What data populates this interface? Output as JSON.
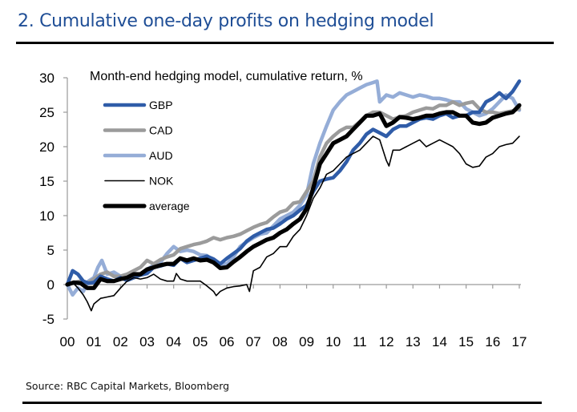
{
  "header": {
    "title": "2. Cumulative one-day profits on hedging model"
  },
  "footer": {
    "source": "Source: RBC Capital Markets, Bloomberg"
  },
  "chart_data": {
    "type": "line",
    "title": "2. Cumulative one-day profits on hedging model",
    "subtitle": "Month-end hedging model, cumulative return, %",
    "xlabel": "",
    "ylabel": "",
    "xlim": [
      2000,
      2017
    ],
    "ylim": [
      -5,
      30
    ],
    "x_ticks": [
      2000,
      2001,
      2002,
      2003,
      2004,
      2005,
      2006,
      2007,
      2008,
      2009,
      2010,
      2011,
      2012,
      2013,
      2014,
      2015,
      2016,
      2017
    ],
    "x_tick_labels": [
      "00",
      "01",
      "02",
      "03",
      "04",
      "05",
      "06",
      "07",
      "08",
      "09",
      "10",
      "11",
      "12",
      "13",
      "14",
      "15",
      "16",
      "17"
    ],
    "y_ticks": [
      -5,
      0,
      5,
      10,
      15,
      20,
      25,
      30
    ],
    "y_tick_labels": [
      "-5",
      "0",
      "5",
      "10",
      "15",
      "20",
      "25",
      "30"
    ],
    "grid": false,
    "legend_position": "top-left",
    "series": [
      {
        "name": "GBP",
        "color": "#2f5ca8",
        "style": "thick",
        "x": [
          2000,
          2000.2,
          2000.4,
          2000.6,
          2000.8,
          2001,
          2001.25,
          2001.5,
          2001.75,
          2002,
          2002.25,
          2002.5,
          2002.75,
          2003,
          2003.25,
          2003.5,
          2003.75,
          2004,
          2004.25,
          2004.5,
          2004.75,
          2005,
          2005.25,
          2005.5,
          2005.75,
          2006,
          2006.25,
          2006.5,
          2006.75,
          2007,
          2007.25,
          2007.5,
          2007.75,
          2008,
          2008.25,
          2008.5,
          2008.75,
          2009,
          2009.25,
          2009.5,
          2009.75,
          2010,
          2010.25,
          2010.5,
          2010.75,
          2011,
          2011.25,
          2011.5,
          2011.75,
          2012,
          2012.25,
          2012.5,
          2012.75,
          2013,
          2013.25,
          2013.5,
          2013.75,
          2014,
          2014.25,
          2014.5,
          2014.75,
          2015,
          2015.25,
          2015.5,
          2015.75,
          2016,
          2016.25,
          2016.5,
          2016.75,
          2017
        ],
        "values": [
          0,
          2,
          1.5,
          0.5,
          0.2,
          0.3,
          1.2,
          0.8,
          0.5,
          1,
          0.6,
          1,
          1.4,
          1.6,
          2.5,
          2.7,
          3,
          2.8,
          3.8,
          3.2,
          3.5,
          3.8,
          4.1,
          3.7,
          3,
          3.8,
          4.5,
          5.2,
          6.3,
          7,
          7.5,
          8,
          8.2,
          8.8,
          9.5,
          10,
          10.8,
          11.5,
          13.5,
          15,
          15.3,
          15.5,
          16.5,
          17.8,
          19.5,
          20.5,
          21.8,
          22.5,
          22,
          21.5,
          22.5,
          23,
          23,
          23.5,
          24,
          24.2,
          24,
          24.5,
          24.8,
          24.2,
          24.5,
          24.5,
          25,
          25,
          26.5,
          27,
          27.8,
          27,
          28,
          29.5
        ]
      },
      {
        "name": "CAD",
        "color": "#9b9b9b",
        "style": "thick",
        "x": [
          2000,
          2000.25,
          2000.5,
          2000.75,
          2001,
          2001.25,
          2001.5,
          2001.75,
          2002,
          2002.25,
          2002.5,
          2002.75,
          2003,
          2003.25,
          2003.5,
          2003.75,
          2004,
          2004.25,
          2004.5,
          2004.75,
          2005,
          2005.25,
          2005.5,
          2005.75,
          2006,
          2006.25,
          2006.5,
          2006.75,
          2007,
          2007.25,
          2007.5,
          2007.75,
          2008,
          2008.25,
          2008.5,
          2008.75,
          2009,
          2009.25,
          2009.5,
          2009.75,
          2010,
          2010.25,
          2010.5,
          2010.75,
          2011,
          2011.25,
          2011.5,
          2011.75,
          2012,
          2012.25,
          2012.5,
          2012.75,
          2013,
          2013.25,
          2013.5,
          2013.75,
          2014,
          2014.25,
          2014.5,
          2014.75,
          2015,
          2015.25,
          2015.5,
          2015.75,
          2016,
          2016.25,
          2016.5,
          2016.75,
          2017
        ],
        "values": [
          0,
          0.3,
          0.5,
          0.2,
          0.8,
          1.5,
          1.8,
          1.2,
          1.2,
          1.5,
          2,
          2.5,
          3.5,
          3,
          3.6,
          4,
          4.3,
          5.2,
          5.5,
          5.8,
          6,
          6.3,
          6.8,
          6.5,
          6.8,
          7,
          7.3,
          7.8,
          8.3,
          8.7,
          9,
          9.8,
          10.5,
          10.8,
          11.8,
          12,
          13.5,
          15,
          18.5,
          20.5,
          21.5,
          22.3,
          22.8,
          22.8,
          23.6,
          24.5,
          25,
          25,
          24.5,
          24,
          24.3,
          24.5,
          25,
          25.3,
          25.6,
          25.5,
          26,
          26,
          26.5,
          26,
          26.3,
          26.5,
          25.5,
          25,
          25,
          24.8,
          25,
          25.2,
          25.5
        ]
      },
      {
        "name": "AUD",
        "color": "#95add7",
        "style": "thick",
        "x": [
          2000,
          2000.2,
          2000.4,
          2000.6,
          2000.8,
          2001,
          2001.15,
          2001.3,
          2001.5,
          2001.75,
          2002,
          2002.25,
          2002.5,
          2002.75,
          2003,
          2003.25,
          2003.5,
          2003.75,
          2004,
          2004.25,
          2004.5,
          2004.75,
          2005,
          2005.25,
          2005.5,
          2005.75,
          2006,
          2006.25,
          2006.5,
          2006.75,
          2007,
          2007.25,
          2007.5,
          2007.75,
          2008,
          2008.25,
          2008.5,
          2008.75,
          2009,
          2009.25,
          2009.5,
          2009.75,
          2010,
          2010.25,
          2010.5,
          2010.75,
          2011,
          2011.25,
          2011.5,
          2011.65,
          2011.75,
          2012,
          2012.25,
          2012.5,
          2012.75,
          2013,
          2013.25,
          2013.5,
          2013.75,
          2014,
          2014.25,
          2014.5,
          2014.75,
          2015,
          2015.25,
          2015.5,
          2015.75,
          2016,
          2016.25,
          2016.5,
          2016.75,
          2017
        ],
        "values": [
          0,
          -1.5,
          -0.5,
          -1,
          0.5,
          1,
          2.5,
          3.5,
          1.5,
          1.8,
          1.2,
          1.5,
          1.6,
          1.5,
          2.2,
          2.8,
          3.2,
          4.5,
          5.5,
          4.8,
          5,
          4.8,
          4.3,
          4.2,
          3.5,
          3,
          3,
          4,
          5.5,
          6.2,
          6.8,
          7.3,
          7.5,
          8.5,
          9.5,
          10,
          10.5,
          11.5,
          13,
          17.5,
          20.5,
          23,
          25.3,
          26.5,
          27.5,
          28,
          28.5,
          29,
          29.3,
          29.5,
          26.5,
          27.5,
          27.2,
          27.8,
          27.5,
          27.2,
          27.5,
          27.3,
          27,
          27,
          26.8,
          26.5,
          26.5,
          25.5,
          25,
          24.5,
          24.8,
          25.5,
          26.5,
          27.5,
          27,
          25.3
        ]
      },
      {
        "name": "NOK",
        "color": "#000000",
        "style": "thin",
        "x": [
          2000,
          2000.2,
          2000.4,
          2000.6,
          2000.75,
          2000.9,
          2001,
          2001.25,
          2001.5,
          2001.75,
          2002,
          2002.25,
          2002.5,
          2002.75,
          2003,
          2003.25,
          2003.5,
          2003.75,
          2004,
          2004.1,
          2004.25,
          2004.5,
          2004.75,
          2005,
          2005.25,
          2005.5,
          2005.6,
          2005.75,
          2006,
          2006.25,
          2006.5,
          2006.75,
          2006.85,
          2007,
          2007.25,
          2007.5,
          2007.75,
          2008,
          2008.25,
          2008.5,
          2008.75,
          2009,
          2009.25,
          2009.5,
          2009.75,
          2010,
          2010.25,
          2010.5,
          2010.75,
          2011,
          2011.25,
          2011.5,
          2011.75,
          2012,
          2012.1,
          2012.25,
          2012.5,
          2012.75,
          2013,
          2013.25,
          2013.5,
          2013.75,
          2014,
          2014.25,
          2014.5,
          2014.75,
          2015,
          2015.25,
          2015.5,
          2015.75,
          2016,
          2016.25,
          2016.5,
          2016.75,
          2017
        ],
        "values": [
          0,
          0.3,
          -0.5,
          -1.5,
          -2.5,
          -3.8,
          -2.8,
          -2,
          -1.8,
          -1.6,
          -0.5,
          0.5,
          1,
          0.8,
          1,
          1.5,
          0.8,
          0.5,
          0.5,
          1.6,
          0.8,
          0.5,
          0.5,
          0.5,
          -0.2,
          -1,
          -1.6,
          -1,
          -0.5,
          -0.3,
          -0.2,
          0,
          -1,
          2,
          2.5,
          4,
          4.5,
          5.5,
          5.5,
          7,
          8,
          10,
          12.5,
          14,
          16,
          16.5,
          17.5,
          18.5,
          19,
          19.5,
          20.5,
          21.5,
          21,
          18,
          17.2,
          19.5,
          19.5,
          20,
          20.5,
          21,
          20,
          20.5,
          21,
          20.5,
          20,
          19,
          17.5,
          17,
          17.2,
          18.5,
          19,
          20,
          20.3,
          20.5,
          21.5
        ]
      },
      {
        "name": "average",
        "color": "#000000",
        "style": "extra-thick",
        "x": [
          2000,
          2000.25,
          2000.5,
          2000.75,
          2001,
          2001.25,
          2001.5,
          2001.75,
          2002,
          2002.25,
          2002.5,
          2002.75,
          2003,
          2003.25,
          2003.5,
          2003.75,
          2004,
          2004.25,
          2004.5,
          2004.75,
          2005,
          2005.25,
          2005.5,
          2005.75,
          2006,
          2006.25,
          2006.5,
          2006.75,
          2007,
          2007.25,
          2007.5,
          2007.75,
          2008,
          2008.25,
          2008.5,
          2008.75,
          2009,
          2009.25,
          2009.5,
          2009.75,
          2010,
          2010.25,
          2010.5,
          2010.75,
          2011,
          2011.25,
          2011.5,
          2011.75,
          2012,
          2012.25,
          2012.5,
          2012.75,
          2013,
          2013.25,
          2013.5,
          2013.75,
          2014,
          2014.25,
          2014.5,
          2014.75,
          2015,
          2015.25,
          2015.5,
          2015.75,
          2016,
          2016.25,
          2016.5,
          2016.75,
          2017
        ],
        "values": [
          0,
          0.3,
          0.2,
          -0.5,
          -0.5,
          0.8,
          0.5,
          0.5,
          0.8,
          1,
          1.5,
          1.5,
          2.2,
          2.5,
          2.8,
          3,
          3,
          3.8,
          3.5,
          3.8,
          3.5,
          3.6,
          3.2,
          2.4,
          2.5,
          3.3,
          4,
          4.8,
          5.5,
          6,
          6.5,
          6.8,
          7.5,
          8,
          8.8,
          9.5,
          11,
          14,
          17.5,
          19,
          20.5,
          21,
          21.5,
          22.5,
          23.5,
          24.5,
          24.5,
          24.8,
          23,
          23.5,
          24.3,
          24.2,
          24,
          24.2,
          24.5,
          24.5,
          24.8,
          25,
          25,
          24.5,
          24.5,
          23.5,
          23.3,
          23.5,
          24.2,
          24.5,
          24.8,
          25,
          26
        ]
      }
    ]
  }
}
